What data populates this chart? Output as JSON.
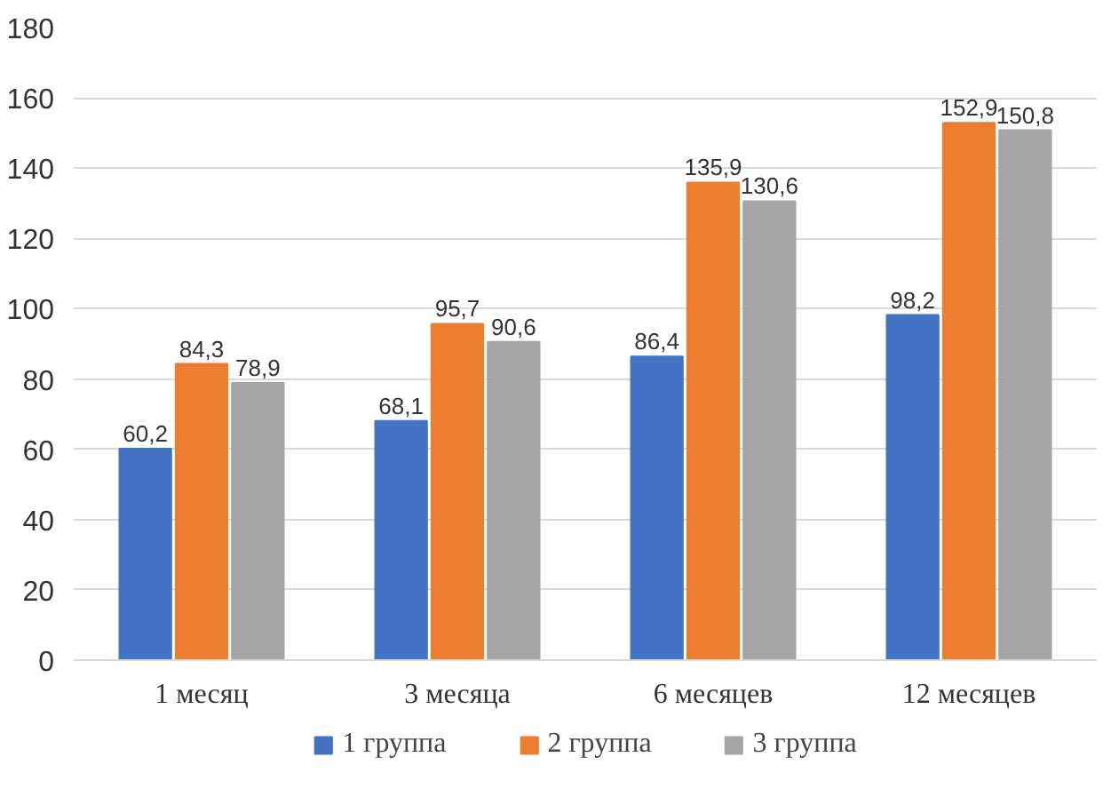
{
  "chart_data": {
    "type": "bar",
    "categories": [
      "1 месяц",
      "3 месяца",
      "6 месяцев",
      "12 месяцев"
    ],
    "series": [
      {
        "name": "1 группа",
        "color": "#4472c4",
        "values": [
          60.2,
          68.1,
          86.4,
          98.2
        ],
        "value_labels": [
          "60,2",
          "68,1",
          "86,4",
          "98,2"
        ]
      },
      {
        "name": "2 группа",
        "color": "#ed7d31",
        "values": [
          84.3,
          95.7,
          135.9,
          152.9
        ],
        "value_labels": [
          "84,3",
          "95,7",
          "135,9",
          "152,9"
        ]
      },
      {
        "name": "3 группа",
        "color": "#a5a5a5",
        "values": [
          78.9,
          90.6,
          130.6,
          150.8
        ],
        "value_labels": [
          "78,9",
          "90,6",
          "130,6",
          "150,8"
        ]
      }
    ],
    "ylim": [
      0,
      180
    ],
    "yticks": [
      0,
      20,
      40,
      60,
      80,
      100,
      120,
      140,
      160,
      180
    ],
    "grid": "y",
    "legend": "bottom"
  }
}
